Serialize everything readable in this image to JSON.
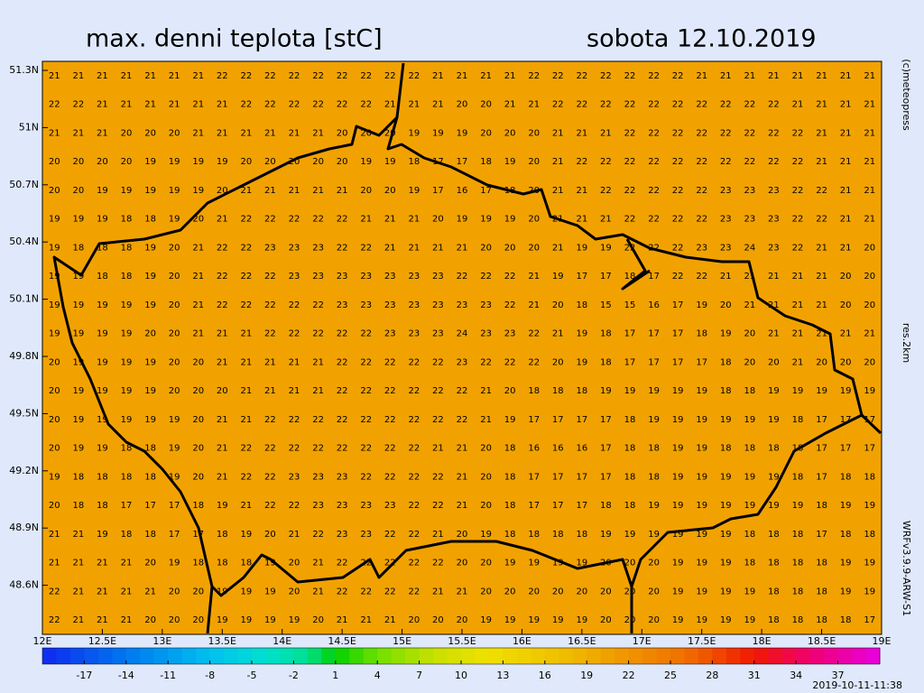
{
  "header": {
    "title": "max. denni teplota [stC]",
    "date": "sobota 12.10.2019"
  },
  "side_texts": {
    "copyright": "(c)meteopress",
    "resolution": "res.2km",
    "model": "WRFv3.9.9-ARW-S1"
  },
  "timestamp": "2019-10-11-11:38",
  "lat_labels": [
    "51.3N",
    "51N",
    "50.7N",
    "50.4N",
    "50.1N",
    "49.8N",
    "49.5N",
    "49.2N",
    "48.9N",
    "48.6N"
  ],
  "lon_labels": [
    "12E",
    "12.5E",
    "13E",
    "13.5E",
    "14E",
    "14.5E",
    "15E",
    "15.5E",
    "16E",
    "16.5E",
    "17E",
    "17.5E",
    "18E",
    "18.5E",
    "19E"
  ],
  "colorbar": {
    "lim": [
      -20,
      40
    ],
    "ticks": [
      -17,
      -14,
      -11,
      -8,
      -5,
      -2,
      1,
      4,
      7,
      10,
      13,
      16,
      19,
      22,
      25,
      28,
      31,
      34,
      37
    ],
    "stops": [
      {
        "value": -20,
        "color": "#1028f0"
      },
      {
        "value": -14,
        "color": "#0078f0"
      },
      {
        "value": -8,
        "color": "#00c0f0"
      },
      {
        "value": -4,
        "color": "#00e0d0"
      },
      {
        "value": -1,
        "color": "#00e090"
      },
      {
        "value": 1,
        "color": "#00d000"
      },
      {
        "value": 4,
        "color": "#70e000"
      },
      {
        "value": 8,
        "color": "#c8e000"
      },
      {
        "value": 12,
        "color": "#f0e000"
      },
      {
        "value": 17,
        "color": "#f0c000"
      },
      {
        "value": 21,
        "color": "#f09c00"
      },
      {
        "value": 26,
        "color": "#f07000"
      },
      {
        "value": 31,
        "color": "#f01800"
      },
      {
        "value": 35,
        "color": "#f00070"
      },
      {
        "value": 40,
        "color": "#e800e0"
      }
    ]
  },
  "map_color": "#f2a200",
  "grid": {
    "rows": [
      [
        21,
        21,
        21,
        21,
        21,
        21,
        21,
        22,
        22,
        22,
        22,
        22,
        22,
        22,
        22,
        22,
        21,
        21,
        21,
        21,
        22,
        22,
        22,
        22,
        22,
        22,
        22,
        21,
        21,
        21,
        21,
        21,
        21,
        21,
        21
      ],
      [
        22,
        22,
        21,
        21,
        21,
        21,
        21,
        21,
        22,
        22,
        22,
        22,
        22,
        22,
        21,
        21,
        21,
        20,
        20,
        21,
        21,
        22,
        22,
        22,
        22,
        22,
        22,
        22,
        22,
        22,
        22,
        21,
        21,
        21,
        21
      ],
      [
        21,
        21,
        21,
        20,
        20,
        20,
        21,
        21,
        21,
        21,
        21,
        21,
        20,
        20,
        20,
        19,
        19,
        19,
        20,
        20,
        20,
        21,
        21,
        21,
        22,
        22,
        22,
        22,
        22,
        22,
        22,
        22,
        21,
        21,
        21
      ],
      [
        20,
        20,
        20,
        20,
        19,
        19,
        19,
        19,
        20,
        20,
        20,
        20,
        20,
        19,
        19,
        18,
        17,
        17,
        18,
        19,
        20,
        21,
        22,
        22,
        22,
        22,
        22,
        22,
        22,
        22,
        22,
        22,
        21,
        21,
        21
      ],
      [
        20,
        20,
        19,
        19,
        19,
        19,
        19,
        20,
        21,
        21,
        21,
        21,
        21,
        20,
        20,
        19,
        17,
        16,
        17,
        18,
        20,
        21,
        21,
        22,
        22,
        22,
        22,
        22,
        23,
        23,
        23,
        22,
        22,
        21,
        21
      ],
      [
        19,
        19,
        19,
        18,
        18,
        19,
        20,
        21,
        22,
        22,
        22,
        22,
        22,
        21,
        21,
        21,
        20,
        19,
        19,
        19,
        20,
        21,
        21,
        21,
        22,
        22,
        22,
        22,
        23,
        23,
        23,
        22,
        22,
        21,
        21
      ],
      [
        19,
        18,
        18,
        18,
        19,
        20,
        21,
        22,
        22,
        23,
        23,
        23,
        22,
        22,
        21,
        21,
        21,
        21,
        20,
        20,
        20,
        21,
        19,
        19,
        22,
        22,
        22,
        23,
        23,
        24,
        23,
        22,
        21,
        21,
        20
      ],
      [
        19,
        19,
        18,
        18,
        19,
        20,
        21,
        22,
        22,
        22,
        23,
        23,
        23,
        23,
        23,
        23,
        23,
        22,
        22,
        22,
        21,
        19,
        17,
        17,
        18,
        17,
        22,
        22,
        21,
        21,
        21,
        21,
        21,
        20,
        20
      ],
      [
        19,
        19,
        19,
        19,
        19,
        20,
        21,
        22,
        22,
        22,
        22,
        22,
        23,
        23,
        23,
        23,
        23,
        23,
        23,
        22,
        21,
        20,
        18,
        15,
        15,
        16,
        17,
        19,
        20,
        21,
        21,
        21,
        21,
        20,
        20
      ],
      [
        19,
        19,
        19,
        19,
        20,
        20,
        21,
        21,
        21,
        22,
        22,
        22,
        22,
        22,
        23,
        23,
        23,
        24,
        23,
        23,
        22,
        21,
        19,
        18,
        17,
        17,
        17,
        18,
        19,
        20,
        21,
        21,
        21,
        21,
        21
      ],
      [
        20,
        19,
        19,
        19,
        19,
        20,
        20,
        21,
        21,
        21,
        21,
        21,
        22,
        22,
        22,
        22,
        22,
        23,
        22,
        22,
        22,
        20,
        19,
        18,
        17,
        17,
        17,
        17,
        18,
        20,
        20,
        21,
        20,
        20,
        20
      ],
      [
        20,
        19,
        19,
        19,
        19,
        20,
        20,
        20,
        21,
        21,
        21,
        21,
        22,
        22,
        22,
        22,
        22,
        22,
        21,
        20,
        18,
        18,
        18,
        19,
        19,
        19,
        19,
        19,
        18,
        18,
        19,
        19,
        19,
        19,
        19
      ],
      [
        20,
        19,
        19,
        19,
        19,
        19,
        20,
        21,
        21,
        22,
        22,
        22,
        22,
        22,
        22,
        22,
        22,
        22,
        21,
        19,
        17,
        17,
        17,
        17,
        18,
        19,
        19,
        19,
        19,
        19,
        19,
        18,
        17,
        17,
        17
      ],
      [
        20,
        19,
        19,
        18,
        18,
        19,
        20,
        21,
        22,
        22,
        22,
        22,
        22,
        22,
        22,
        22,
        21,
        21,
        20,
        18,
        16,
        16,
        16,
        17,
        18,
        18,
        19,
        19,
        18,
        18,
        18,
        18,
        17,
        17,
        17
      ],
      [
        19,
        18,
        18,
        18,
        18,
        19,
        20,
        21,
        22,
        22,
        23,
        23,
        23,
        22,
        22,
        22,
        22,
        21,
        20,
        18,
        17,
        17,
        17,
        17,
        18,
        18,
        19,
        19,
        19,
        19,
        19,
        18,
        17,
        18,
        18
      ],
      [
        20,
        18,
        18,
        17,
        17,
        17,
        18,
        19,
        21,
        22,
        22,
        23,
        23,
        23,
        23,
        22,
        22,
        21,
        20,
        18,
        17,
        17,
        17,
        18,
        18,
        19,
        19,
        19,
        19,
        19,
        19,
        19,
        18,
        19,
        19
      ],
      [
        21,
        21,
        19,
        18,
        18,
        17,
        17,
        18,
        19,
        20,
        21,
        22,
        23,
        23,
        22,
        22,
        21,
        20,
        19,
        18,
        18,
        18,
        18,
        19,
        19,
        19,
        19,
        19,
        19,
        18,
        18,
        18,
        17,
        18,
        18
      ],
      [
        21,
        21,
        21,
        21,
        20,
        19,
        18,
        18,
        18,
        19,
        20,
        21,
        22,
        22,
        22,
        22,
        22,
        20,
        20,
        19,
        19,
        19,
        19,
        20,
        20,
        20,
        19,
        19,
        19,
        18,
        18,
        18,
        18,
        19,
        19
      ],
      [
        22,
        21,
        21,
        21,
        21,
        20,
        20,
        19,
        19,
        19,
        20,
        21,
        22,
        22,
        22,
        22,
        21,
        21,
        20,
        20,
        20,
        20,
        20,
        20,
        20,
        20,
        19,
        19,
        19,
        19,
        18,
        18,
        18,
        19,
        19
      ],
      [
        22,
        21,
        21,
        21,
        20,
        20,
        20,
        19,
        19,
        19,
        19,
        20,
        21,
        21,
        21,
        20,
        20,
        20,
        19,
        19,
        19,
        19,
        19,
        20,
        20,
        20,
        19,
        19,
        19,
        19,
        18,
        18,
        18,
        18,
        17
      ]
    ]
  }
}
